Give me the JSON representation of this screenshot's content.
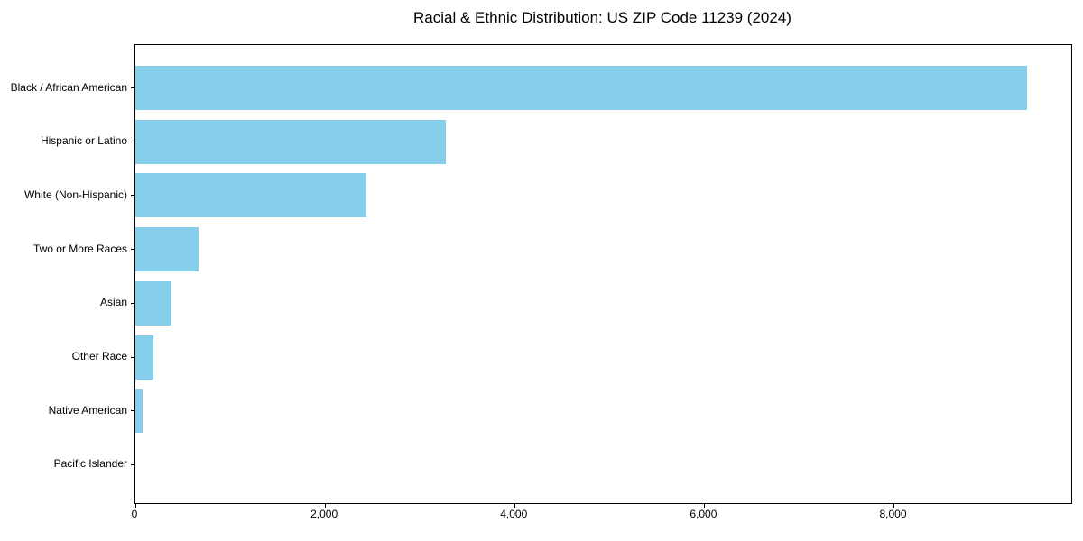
{
  "chart_data": {
    "type": "bar",
    "orientation": "horizontal",
    "title": "Racial & Ethnic Distribution: US ZIP Code 11239 (2024)",
    "categories": [
      "Black / African American",
      "Hispanic or Latino",
      "White (Non-Hispanic)",
      "Two or More Races",
      "Asian",
      "Other Race",
      "Native American",
      "Pacific Islander"
    ],
    "values": [
      9400,
      3270,
      2440,
      665,
      370,
      190,
      75,
      0
    ],
    "xlabel": "",
    "ylabel": "",
    "xlim": [
      0,
      9870
    ],
    "xticks": [
      0,
      2000,
      4000,
      6000,
      8000
    ],
    "xtick_labels": [
      "0",
      "2,000",
      "4,000",
      "6,000",
      "8,000"
    ],
    "grid": false,
    "legend": "none",
    "colors": {
      "bar": "#87CEEB",
      "axis": "#000000",
      "text": "#000000",
      "background": "#ffffff"
    }
  }
}
